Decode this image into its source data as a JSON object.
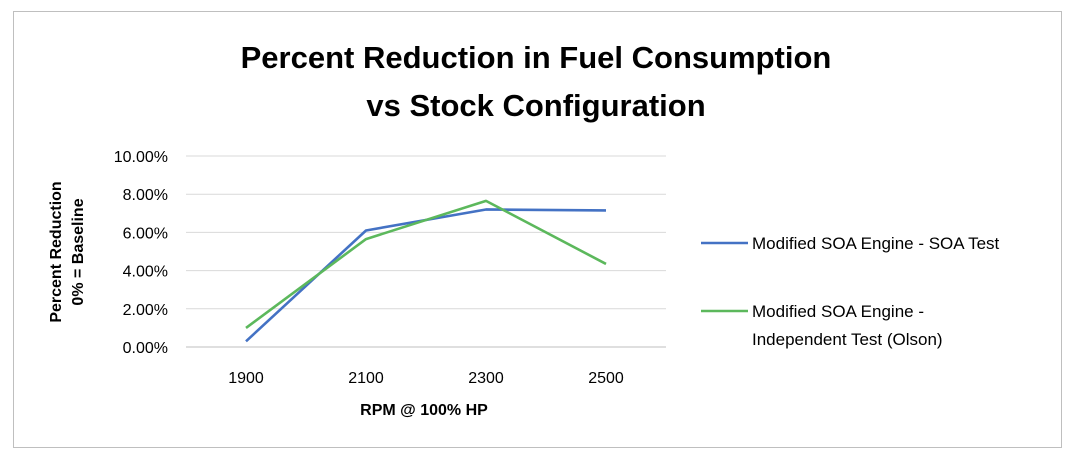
{
  "chart_data": {
    "type": "line",
    "title_lines": [
      "Percent Reduction in Fuel Consumption",
      "vs Stock Configuration"
    ],
    "xlabel": "RPM @ 100% HP",
    "ylabel_lines": [
      "Percent Reduction",
      "0% = Baseline"
    ],
    "categories": [
      "1900",
      "2100",
      "2300",
      "2500"
    ],
    "y_ticks": [
      "0.00%",
      "2.00%",
      "4.00%",
      "6.00%",
      "8.00%",
      "10.00%"
    ],
    "ylim": [
      0,
      10
    ],
    "grid": true,
    "legend_position": "right",
    "series": [
      {
        "name": "Modified SOA Engine - SOA Test",
        "legend_lines": [
          "Modified SOA Engine - SOA Test"
        ],
        "color": "#4472c4",
        "values": [
          0.3,
          6.1,
          7.2,
          7.15
        ]
      },
      {
        "name": "Modified SOA Engine - Independent Test (Olson)",
        "legend_lines": [
          "Modified SOA Engine -",
          "Independent Test (Olson)"
        ],
        "color": "#5cb85c",
        "values": [
          1.0,
          5.65,
          7.65,
          4.35
        ]
      }
    ]
  }
}
